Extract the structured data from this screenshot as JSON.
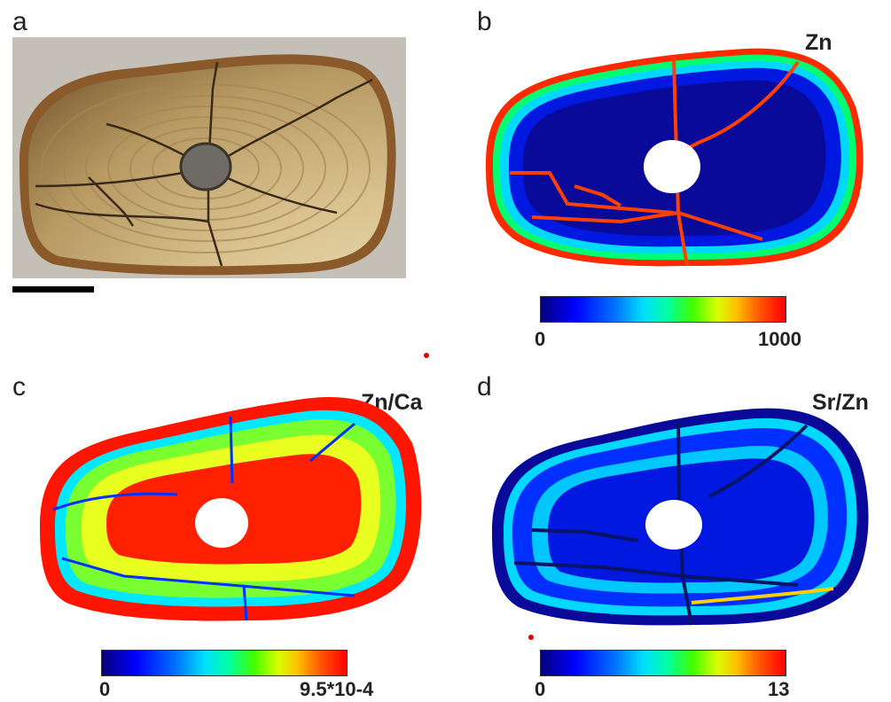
{
  "panels": {
    "a": {
      "letter": "a"
    },
    "b": {
      "letter": "b",
      "element": "Zn",
      "scale_min": "0",
      "scale_max": "1000"
    },
    "c": {
      "letter": "c",
      "element": "Zn/Ca",
      "scale_min": "0",
      "scale_max": "9.5*10-4"
    },
    "d": {
      "letter": "d",
      "element": "Sr/Zn",
      "scale_min": "0",
      "scale_max": "13"
    }
  },
  "colors": {
    "colormap": [
      "#05007a",
      "#0000ff",
      "#0070ff",
      "#00e0ff",
      "#00ffa0",
      "#40ff00",
      "#d8ff00",
      "#ffc000",
      "#ff5000",
      "#ff0000"
    ],
    "scale_bar": "#000000",
    "marker_dot": "#e00000"
  }
}
